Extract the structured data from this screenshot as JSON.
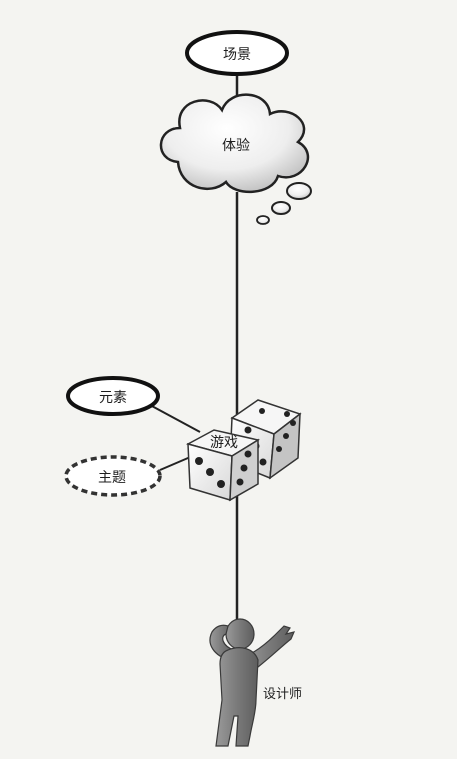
{
  "diagram": {
    "nodes": {
      "venue": {
        "label": "场景",
        "shape": "ellipse"
      },
      "experience": {
        "label": "体验",
        "shape": "thought-cloud"
      },
      "elements": {
        "label": "元素",
        "shape": "ellipse"
      },
      "theme": {
        "label": "主题",
        "shape": "dashed-ellipse"
      },
      "game": {
        "label": "游戏",
        "shape": "dice"
      },
      "designer": {
        "label": "设计师",
        "shape": "person-figure"
      }
    },
    "connections": [
      {
        "from": "venue",
        "to": "experience"
      },
      {
        "from": "experience",
        "to": "game"
      },
      {
        "from": "elements",
        "to": "game"
      },
      {
        "from": "theme",
        "to": "game"
      },
      {
        "from": "game",
        "to": "designer"
      }
    ]
  }
}
